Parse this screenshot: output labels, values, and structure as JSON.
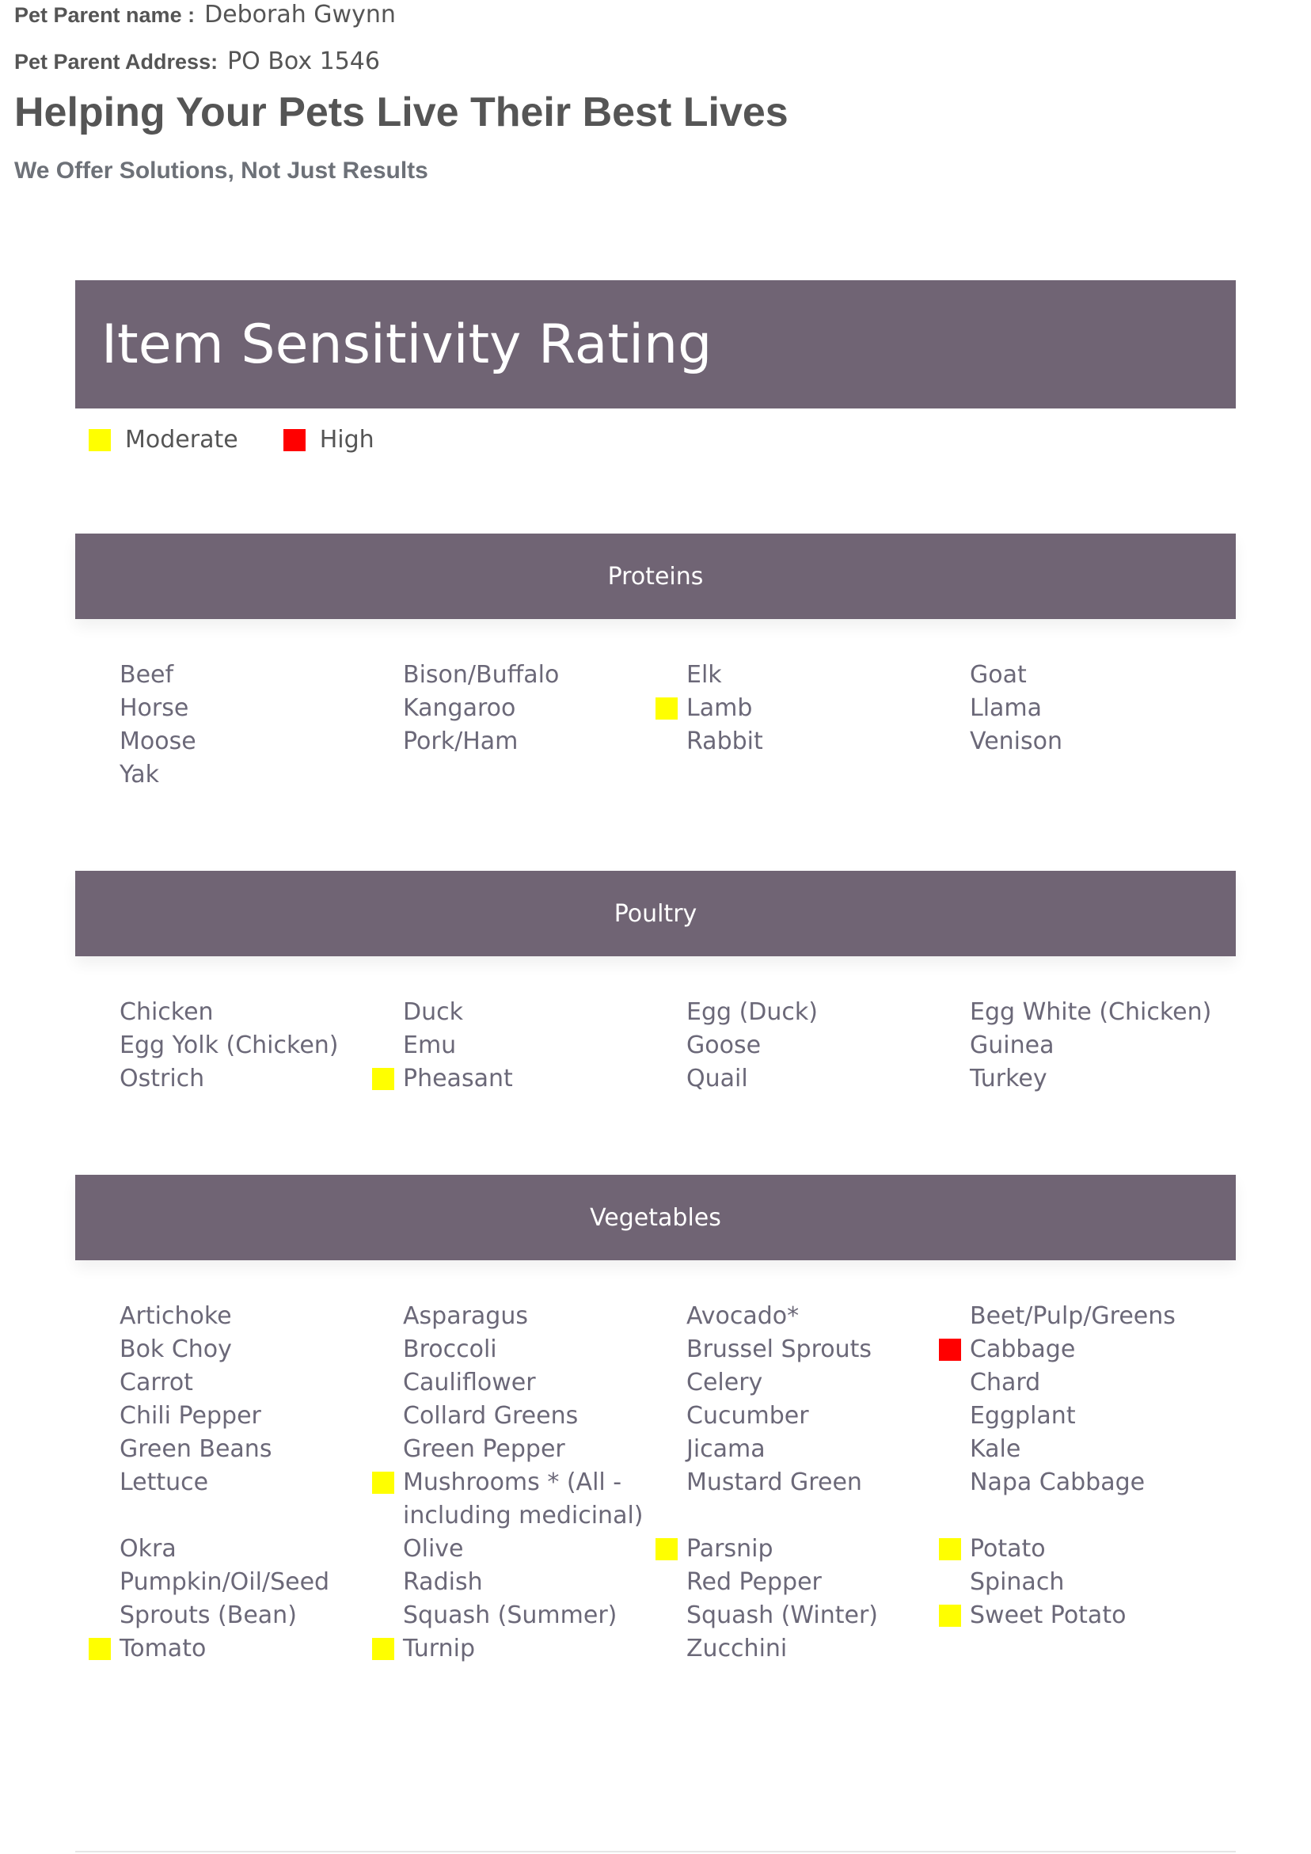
{
  "header": {
    "parent_name_label": "Pet Parent name :",
    "parent_name": "Deborah Gwynn",
    "address_label": "Pet Parent Address:",
    "address": "PO Box 1546",
    "title": "Helping Your Pets Live Their Best Lives",
    "subtitle": "We Offer Solutions, Not Just Results"
  },
  "rating": {
    "title": "Item Sensitivity Rating",
    "legend": [
      {
        "label": "Moderate",
        "color": "#ffff00"
      },
      {
        "label": "High",
        "color": "#ff0000"
      }
    ]
  },
  "sections": [
    {
      "title": "Proteins",
      "items": [
        {
          "name": "Beef"
        },
        {
          "name": "Bison/Buffalo"
        },
        {
          "name": "Elk"
        },
        {
          "name": "Goat"
        },
        {
          "name": "Horse"
        },
        {
          "name": "Kangaroo"
        },
        {
          "name": "Lamb",
          "color": "#ffff00"
        },
        {
          "name": "Llama"
        },
        {
          "name": "Moose"
        },
        {
          "name": "Pork/Ham"
        },
        {
          "name": "Rabbit"
        },
        {
          "name": "Venison"
        },
        {
          "name": "Yak"
        }
      ]
    },
    {
      "title": "Poultry",
      "items": [
        {
          "name": "Chicken"
        },
        {
          "name": "Duck"
        },
        {
          "name": "Egg (Duck)"
        },
        {
          "name": "Egg White (Chicken)"
        },
        {
          "name": "Egg Yolk (Chicken)"
        },
        {
          "name": "Emu"
        },
        {
          "name": "Goose"
        },
        {
          "name": "Guinea"
        },
        {
          "name": "Ostrich"
        },
        {
          "name": "Pheasant",
          "color": "#ffff00"
        },
        {
          "name": "Quail"
        },
        {
          "name": "Turkey"
        }
      ]
    },
    {
      "title": "Vegetables",
      "items": [
        {
          "name": "Artichoke"
        },
        {
          "name": "Asparagus"
        },
        {
          "name": "Avocado*"
        },
        {
          "name": "Beet/Pulp/Greens"
        },
        {
          "name": "Bok Choy"
        },
        {
          "name": "Broccoli"
        },
        {
          "name": "Brussel Sprouts"
        },
        {
          "name": "Cabbage",
          "color": "#ff0000"
        },
        {
          "name": "Carrot"
        },
        {
          "name": "Cauliflower"
        },
        {
          "name": "Celery"
        },
        {
          "name": "Chard"
        },
        {
          "name": "Chili Pepper"
        },
        {
          "name": "Collard Greens"
        },
        {
          "name": "Cucumber"
        },
        {
          "name": "Eggplant"
        },
        {
          "name": "Green Beans"
        },
        {
          "name": "Green Pepper"
        },
        {
          "name": "Jicama"
        },
        {
          "name": "Kale"
        },
        {
          "name": "Lettuce"
        },
        {
          "name": "Mushrooms * (All - including medicinal)",
          "color": "#ffff00"
        },
        {
          "name": "Mustard Green"
        },
        {
          "name": "Napa Cabbage"
        },
        {
          "name": "Okra"
        },
        {
          "name": "Olive"
        },
        {
          "name": "Parsnip",
          "color": "#ffff00"
        },
        {
          "name": "Potato",
          "color": "#ffff00"
        },
        {
          "name": "Pumpkin/Oil/Seed"
        },
        {
          "name": "Radish"
        },
        {
          "name": "Red Pepper"
        },
        {
          "name": "Spinach"
        },
        {
          "name": "Sprouts (Bean)"
        },
        {
          "name": "Squash (Summer)"
        },
        {
          "name": "Squash (Winter)"
        },
        {
          "name": "Sweet Potato",
          "color": "#ffff00"
        },
        {
          "name": "Tomato",
          "color": "#ffff00"
        },
        {
          "name": "Turnip",
          "color": "#ffff00"
        },
        {
          "name": "Zucchini"
        }
      ]
    }
  ]
}
